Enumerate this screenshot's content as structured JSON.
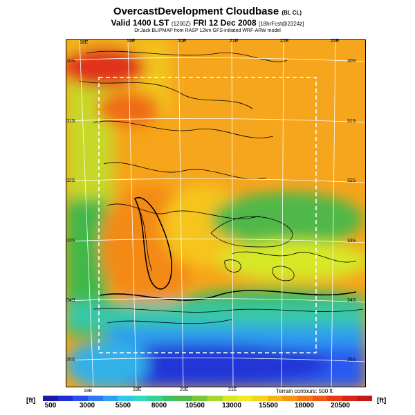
{
  "title": {
    "main": "OvercastDevelopment Cloudbase",
    "main_suffix": "(BL CL)",
    "valid_line": "Valid 1400 LST",
    "valid_code": "(1200Z)",
    "valid_date": "FRI 12 Dec 2008",
    "valid_fcst": "[18hrFcst@2324z]",
    "credit": "Dr.Jack BLIPMAP from RASP 12km GFS-initiated WRF-ARW model"
  },
  "map": {
    "lon_top": [
      "18E",
      "19E",
      "20E",
      "21E",
      "22E",
      "23E"
    ],
    "lon_bottom": [
      "18E",
      "19E",
      "20E",
      "21E"
    ],
    "lat_left": [
      "30S",
      "31S",
      "32S",
      "33S",
      "34S",
      "35S"
    ],
    "lat_right": [
      "30S",
      "31S",
      "32S",
      "33S",
      "34S",
      "35S"
    ],
    "terrain_note": "Terrain contours: 500 ft"
  },
  "colorbar": {
    "unit_left": "[ft]",
    "unit_right": "[ft]",
    "labels": [
      "500",
      "3000",
      "5500",
      "8000",
      "10500",
      "13000",
      "15500",
      "18000",
      "20500"
    ],
    "colors": [
      "#1a1aa8",
      "#1f2ed6",
      "#2850f0",
      "#2d78f5",
      "#30a0f0",
      "#30c8e8",
      "#32d8c0",
      "#36d090",
      "#40c060",
      "#52b848",
      "#78c838",
      "#a6d830",
      "#d6e828",
      "#f2ea20",
      "#f6d21c",
      "#f6b418",
      "#f49616",
      "#f27814",
      "#ee5a14",
      "#e83c16",
      "#d8241a",
      "#c01a1a"
    ]
  }
}
